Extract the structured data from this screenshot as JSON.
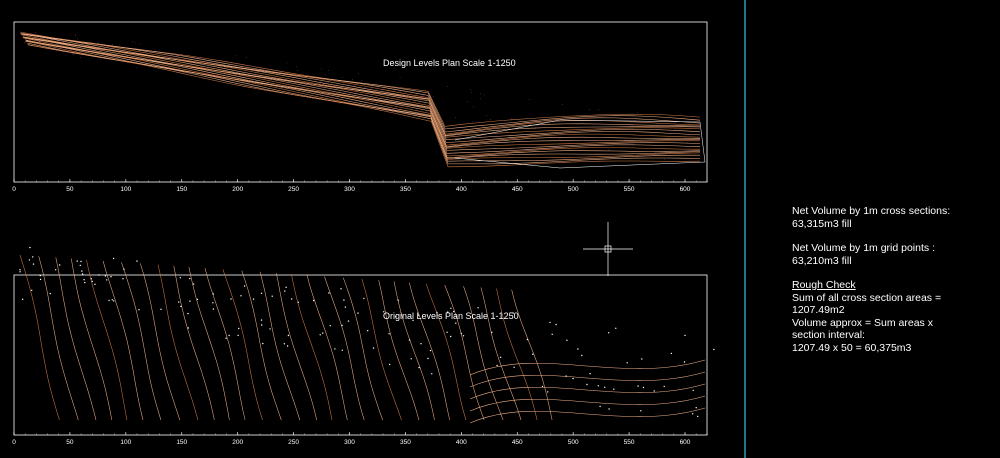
{
  "colors": {
    "background": "#000000",
    "frame": "#ffffff",
    "contour": "#f0b088",
    "contour_alt": "#cc7a44",
    "label_design": "#ff44ff",
    "label_original": "#ffffff",
    "divider": "#33ccdd"
  },
  "panels": {
    "design": {
      "title": "Design Levels Plan Scale 1-1250"
    },
    "original": {
      "title": "Original Levels Plan Scale 1-1250"
    }
  },
  "x_axis": {
    "ticks": [
      "0",
      "50",
      "100",
      "150",
      "200",
      "250",
      "300",
      "350",
      "400",
      "450",
      "500",
      "550",
      "600"
    ]
  },
  "notes": {
    "cross_sections_heading": "Net Volume by 1m cross sections:",
    "cross_sections_value": "63,315m3 fill",
    "grid_points_heading": "Net Volume by 1m grid points :",
    "grid_points_value": "63,210m3 fill",
    "rough_check_heading": "Rough Check",
    "rough_check_line1": "Sum of all cross section areas =",
    "rough_check_line2": "1207.49m2",
    "rough_check_line3": "Volume approx = Sum areas x",
    "rough_check_line4": "section interval:",
    "rough_check_line5": "1207.49 x 50 = 60,375m3"
  },
  "cursor": {
    "name": "crosshair-cursor"
  }
}
